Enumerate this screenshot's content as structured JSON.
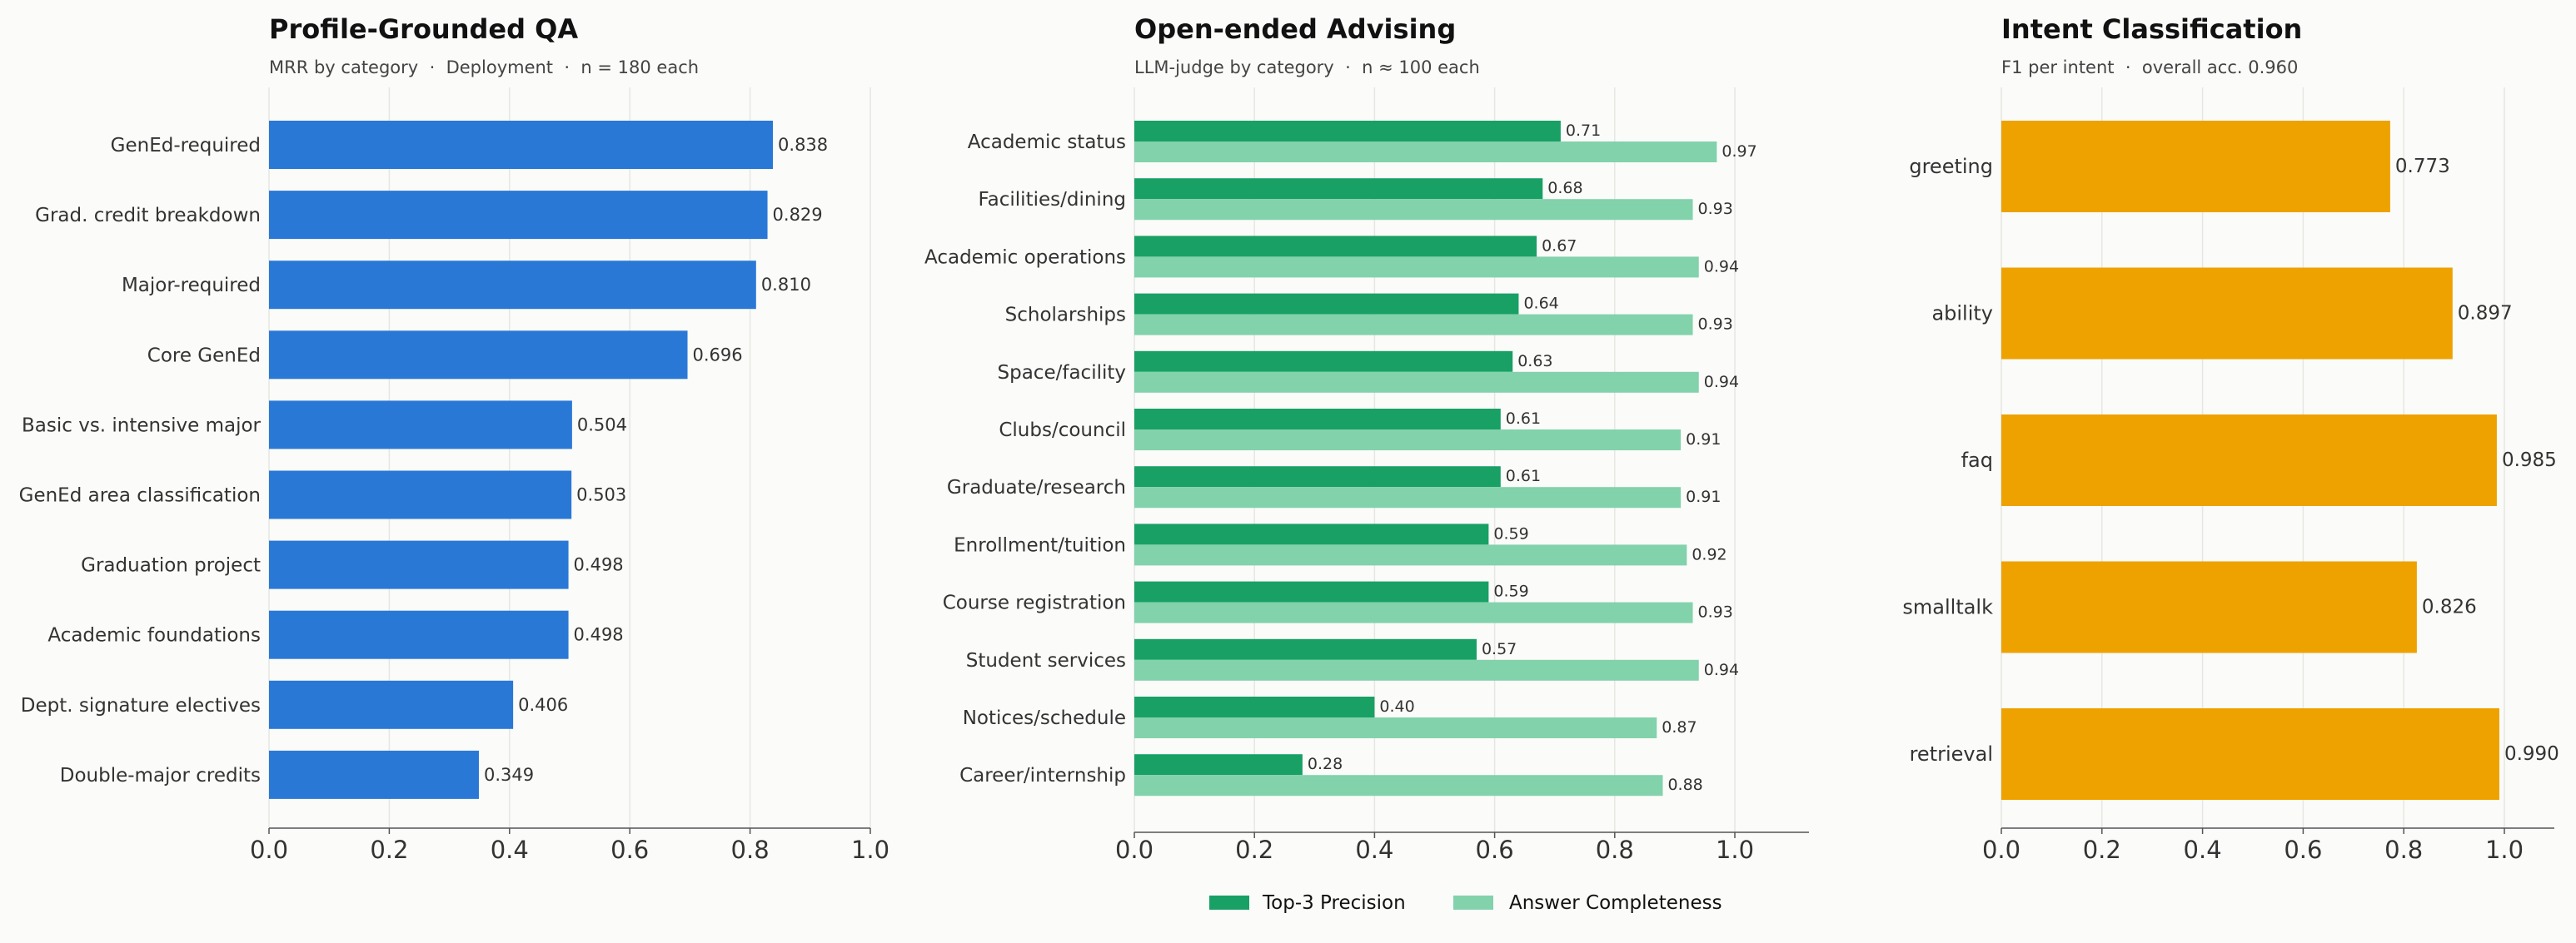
{
  "chart_data": [
    {
      "type": "bar",
      "orientation": "horizontal",
      "title": "Profile-Grounded QA",
      "subtitle": "MRR by category  ·  Deployment  ·  n = 180 each",
      "categories": [
        "GenEd-required",
        "Grad. credit breakdown",
        "Major-required",
        "Core GenEd",
        "Basic vs. intensive major",
        "GenEd area classification",
        "Graduation project",
        "Academic foundations",
        "Dept. signature electives",
        "Double-major credits"
      ],
      "values": [
        0.838,
        0.829,
        0.81,
        0.696,
        0.504,
        0.503,
        0.498,
        0.498,
        0.406,
        0.349
      ],
      "value_labels": [
        "0.838",
        "0.829",
        "0.810",
        "0.696",
        "0.504",
        "0.503",
        "0.498",
        "0.498",
        "0.406",
        "0.349"
      ],
      "xlim": [
        0,
        1.0
      ],
      "xticks": [
        "0.0",
        "0.2",
        "0.4",
        "0.6",
        "0.8",
        "1.0"
      ],
      "grid": "vertical",
      "color": "#2a78d6"
    },
    {
      "type": "bar",
      "orientation": "horizontal",
      "title": "Open-ended Advising",
      "subtitle": "LLM-judge by category  ·  n ≈ 100 each",
      "categories": [
        "Academic status",
        "Facilities/dining",
        "Academic operations",
        "Scholarships",
        "Space/facility",
        "Clubs/council",
        "Graduate/research",
        "Enrollment/tuition",
        "Course registration",
        "Student services",
        "Notices/schedule",
        "Career/internship"
      ],
      "series": [
        {
          "name": "Top-3 Precision",
          "color": "#19a064",
          "values": [
            0.71,
            0.68,
            0.67,
            0.64,
            0.63,
            0.61,
            0.61,
            0.59,
            0.59,
            0.57,
            0.4,
            0.28
          ],
          "value_labels": [
            "0.71",
            "0.68",
            "0.67",
            "0.64",
            "0.63",
            "0.61",
            "0.61",
            "0.59",
            "0.59",
            "0.57",
            "0.40",
            "0.28"
          ]
        },
        {
          "name": "Answer Completeness",
          "color": "#82d2ac",
          "values": [
            0.97,
            0.93,
            0.94,
            0.93,
            0.94,
            0.91,
            0.91,
            0.92,
            0.93,
            0.94,
            0.87,
            0.88
          ],
          "value_labels": [
            "0.97",
            "0.93",
            "0.94",
            "0.93",
            "0.94",
            "0.91",
            "0.91",
            "0.92",
            "0.93",
            "0.94",
            "0.87",
            "0.88"
          ]
        }
      ],
      "xlim": [
        0,
        1.0
      ],
      "xticks": [
        "0.0",
        "0.2",
        "0.4",
        "0.6",
        "0.8",
        "1.0"
      ],
      "grid": "vertical",
      "legend": "bottom-center"
    },
    {
      "type": "bar",
      "orientation": "horizontal",
      "title": "Intent Classification",
      "subtitle": "F1 per intent  ·  overall acc. 0.960",
      "categories": [
        "greeting",
        "ability",
        "faq",
        "smalltalk",
        "retrieval"
      ],
      "values": [
        0.773,
        0.897,
        0.985,
        0.826,
        0.99
      ],
      "value_labels": [
        "0.773",
        "0.897",
        "0.985",
        "0.826",
        "0.990"
      ],
      "xlim": [
        0,
        1.0
      ],
      "xticks": [
        "0.0",
        "0.2",
        "0.4",
        "0.6",
        "0.8",
        "1.0"
      ],
      "grid": "vertical",
      "color": "#eea200"
    }
  ]
}
